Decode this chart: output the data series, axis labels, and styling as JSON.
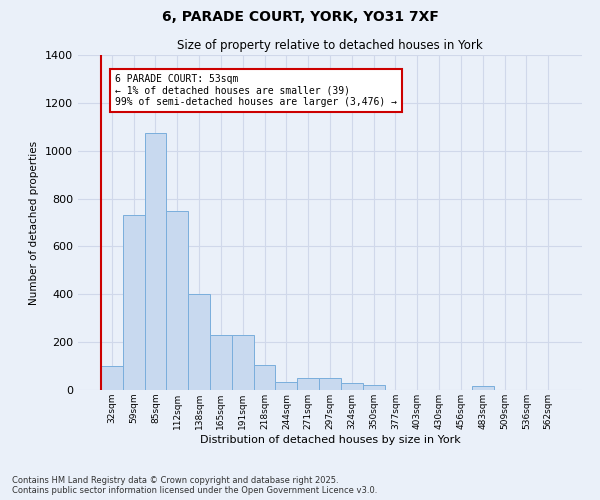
{
  "title1": "6, PARADE COURT, YORK, YO31 7XF",
  "title2": "Size of property relative to detached houses in York",
  "xlabel": "Distribution of detached houses by size in York",
  "ylabel": "Number of detached properties",
  "categories": [
    "32sqm",
    "59sqm",
    "85sqm",
    "112sqm",
    "138sqm",
    "165sqm",
    "191sqm",
    "218sqm",
    "244sqm",
    "271sqm",
    "297sqm",
    "324sqm",
    "350sqm",
    "377sqm",
    "403sqm",
    "430sqm",
    "456sqm",
    "483sqm",
    "509sqm",
    "536sqm",
    "562sqm"
  ],
  "values": [
    100,
    730,
    1075,
    750,
    400,
    230,
    230,
    105,
    35,
    50,
    50,
    30,
    20,
    0,
    0,
    0,
    0,
    15,
    0,
    0,
    0
  ],
  "bar_color": "#c8d9ef",
  "bar_edge_color": "#7aaedc",
  "bg_color": "#eaf0f9",
  "grid_color": "#d0d8ea",
  "annotation_box_color": "#cc0000",
  "annotation_line1": "6 PARADE COURT: 53sqm",
  "annotation_line2": "← 1% of detached houses are smaller (39)",
  "annotation_line3": "99% of semi-detached houses are larger (3,476) →",
  "ylim": [
    0,
    1400
  ],
  "yticks": [
    0,
    200,
    400,
    600,
    800,
    1000,
    1200,
    1400
  ],
  "footer1": "Contains HM Land Registry data © Crown copyright and database right 2025.",
  "footer2": "Contains public sector information licensed under the Open Government Licence v3.0."
}
